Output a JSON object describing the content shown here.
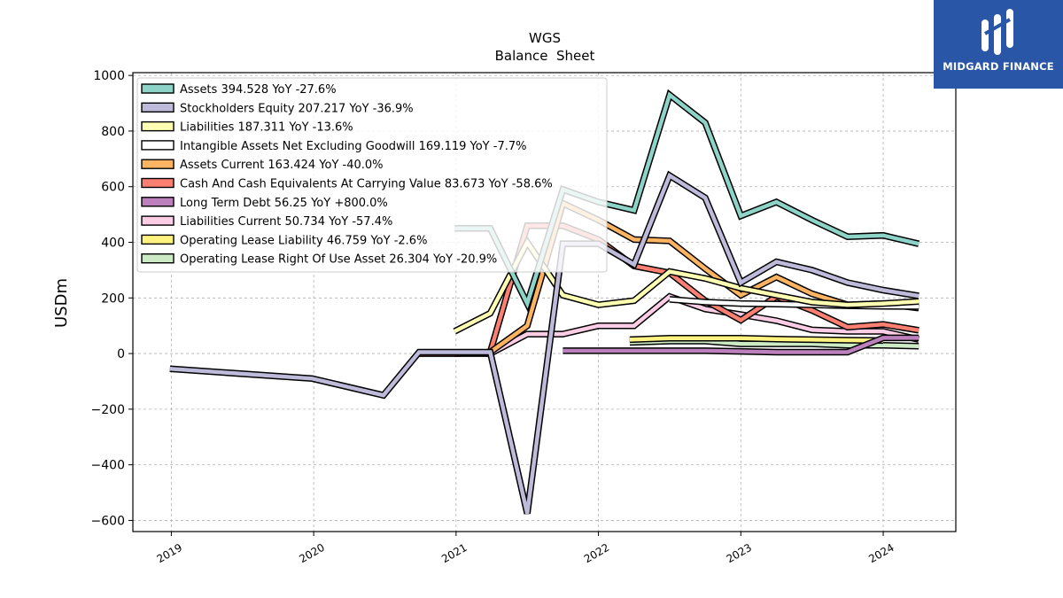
{
  "brand": {
    "name": "MIDGARD FINANCE",
    "bg_color": "#2a56a8"
  },
  "chart_data": {
    "type": "line",
    "title": "WGS",
    "subtitle": "Balance  Sheet",
    "xlabel": "",
    "ylabel": "USDm",
    "xlim": [
      2018.73,
      2024.51
    ],
    "ylim": [
      -640,
      1010
    ],
    "xticks": [
      2019,
      2020,
      2021,
      2022,
      2023,
      2024
    ],
    "yticks": [
      -600,
      -400,
      -200,
      0,
      200,
      400,
      600,
      800,
      1000
    ],
    "ytick_labels": [
      "−600",
      "−400",
      "−200",
      "0",
      "200",
      "400",
      "600",
      "800",
      "1000"
    ],
    "grid": true,
    "legend_position": "top-left",
    "series": [
      {
        "name": "Assets",
        "legend": "Assets  394.528 YoY -27.6%",
        "color": "#8dd3c7",
        "x": [
          2020.99,
          2021.24,
          2021.5,
          2021.75,
          2022.0,
          2022.25,
          2022.5,
          2022.75,
          2023.0,
          2023.25,
          2023.5,
          2023.75,
          2024.0,
          2024.25
        ],
        "y": [
          450,
          450,
          180,
          590,
          545,
          515,
          930,
          830,
          495,
          545,
          480,
          420,
          425,
          394.528
        ]
      },
      {
        "name": "Stockholders Equity",
        "legend": "Stockholders Equity  207.217 YoY -36.9%",
        "color": "#bebada",
        "x": [
          2018.99,
          2019.99,
          2020.49,
          2020.74,
          2020.99,
          2021.24,
          2021.5,
          2021.75,
          2022.0,
          2022.25,
          2022.5,
          2022.75,
          2023.0,
          2023.25,
          2023.5,
          2023.75,
          2024.0,
          2024.25
        ],
        "y": [
          -55,
          -90,
          -150,
          5,
          5,
          5,
          -575,
          395,
          395,
          320,
          640,
          560,
          255,
          330,
          300,
          255,
          228,
          207.217
        ]
      },
      {
        "name": "Liabilities",
        "legend": "Liabilities  187.311 YoY -13.6%",
        "color": "#ffffb3",
        "x": [
          2020.99,
          2021.24,
          2021.5,
          2021.75,
          2022.0,
          2022.25,
          2022.5,
          2022.75,
          2023.0,
          2023.25,
          2023.5,
          2023.75,
          2024.0,
          2024.25
        ],
        "y": [
          80,
          145,
          400,
          210,
          175,
          190,
          295,
          270,
          235,
          210,
          185,
          175,
          180,
          187.311
        ]
      },
      {
        "name": "Intangible Assets Net Excluding Goodwill",
        "legend": "Intangible Assets Net Excluding Goodwill  169.119 YoY -7.7%",
        "color": "#ffffff",
        "x": [
          2022.5,
          2022.75,
          2023.0,
          2023.25,
          2023.5,
          2023.75,
          2024.0,
          2024.25
        ],
        "y": [
          195,
          185,
          180,
          178,
          175,
          172,
          170,
          169.119
        ]
      },
      {
        "name": "Assets Current",
        "legend": "Assets Current  163.424 YoY -40.0%",
        "color": "#fdb462",
        "x": [
          2021.24,
          2021.5,
          2021.75,
          2022.0,
          2022.25,
          2022.5,
          2022.75,
          2023.0,
          2023.25,
          2023.5,
          2023.75,
          2024.0,
          2024.25
        ],
        "y": [
          5,
          100,
          540,
          480,
          410,
          405,
          305,
          210,
          275,
          215,
          175,
          180,
          163.424
        ]
      },
      {
        "name": "Cash And Cash Equivalents At Carrying Value",
        "legend": "Cash And Cash Equivalents At Carrying Value  83.673 YoY -58.6%",
        "color": "#fb8072",
        "x": [
          2020.74,
          2020.99,
          2021.24,
          2021.5,
          2021.75,
          2022.0,
          2022.25,
          2022.5,
          2022.75,
          2023.0,
          2023.25,
          2023.5,
          2023.75,
          2024.0,
          2024.25
        ],
        "y": [
          0,
          0,
          5,
          460,
          460,
          410,
          315,
          290,
          190,
          120,
          205,
          155,
          95,
          105,
          83.673
        ]
      },
      {
        "name": "Long Term Debt",
        "legend": "Long Term Debt  56.25 YoY +800.0%",
        "color": "#bc80bd",
        "x": [
          2021.75,
          2022.0,
          2022.25,
          2022.5,
          2022.75,
          2023.0,
          2023.25,
          2023.5,
          2023.75,
          2024.0,
          2024.25
        ],
        "y": [
          10,
          10,
          10,
          10,
          10,
          8,
          5,
          5,
          5,
          56.25,
          56.25
        ]
      },
      {
        "name": "Liabilities Current",
        "legend": "Liabilities Current  50.734 YoY -57.4%",
        "color": "#fccde5",
        "x": [
          2020.99,
          2021.24,
          2021.5,
          2021.75,
          2022.0,
          2022.25,
          2022.5,
          2022.75,
          2023.0,
          2023.25,
          2023.5,
          2023.75,
          2024.0,
          2024.25
        ],
        "y": [
          0,
          0,
          70,
          70,
          100,
          100,
          205,
          160,
          140,
          118,
          85,
          80,
          80,
          50.734
        ]
      },
      {
        "name": "Operating Lease Liability",
        "legend": "Operating Lease Liability  46.759 YoY -2.6%",
        "color": "#fff280",
        "x": [
          2022.22,
          2022.5,
          2022.75,
          2023.0,
          2023.25,
          2023.5,
          2023.75,
          2024.0
        ],
        "y": [
          50,
          55,
          55,
          55,
          52,
          50,
          48,
          46.759
        ]
      },
      {
        "name": "Operating Lease Right Of Use Asset",
        "legend": "Operating Lease Right Of Use Asset  26.304 YoY -20.9%",
        "color": "#ccebc5",
        "x": [
          2022.22,
          2022.5,
          2022.75,
          2023.0,
          2023.25,
          2023.5,
          2023.75,
          2024.0,
          2024.25
        ],
        "y": [
          40,
          45,
          45,
          35,
          35,
          35,
          30,
          30,
          26.304
        ]
      }
    ]
  }
}
